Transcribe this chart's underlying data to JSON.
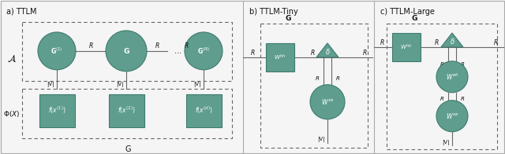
{
  "bg_color": "#f5f5f5",
  "outer_border_color": "#999999",
  "teal_fill": "#5f9e8f",
  "teal_edge": "#3d7a6e",
  "line_color": "#666666",
  "text_color": "#111111",
  "panel_a_title": "a) TTLM",
  "panel_b_title": "b) TTLM-Tiny",
  "panel_c_title": "c) TTLM-Large",
  "divider_a_b": 308,
  "divider_b_c": 474
}
